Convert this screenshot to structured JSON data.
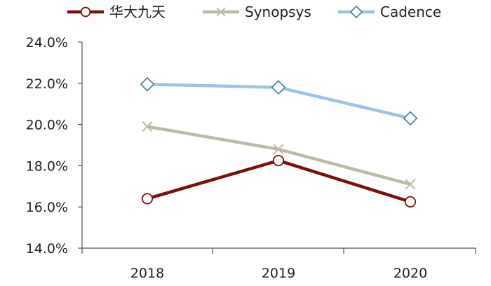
{
  "chart_data": {
    "type": "line",
    "categories": [
      "2018",
      "2019",
      "2020"
    ],
    "ylim": [
      14.0,
      24.0
    ],
    "yticks": [
      14.0,
      16.0,
      18.0,
      20.0,
      22.0,
      24.0
    ],
    "ytick_labels": [
      "14.0%",
      "16.0%",
      "18.0%",
      "20.0%",
      "22.0%",
      "24.0%"
    ],
    "grid": false,
    "legend_position": "top",
    "series": [
      {
        "name": "华大九天",
        "values": [
          16.4,
          18.25,
          16.25
        ],
        "color": "#7b0f0f",
        "marker": "circle"
      },
      {
        "name": "Synopsys",
        "values": [
          19.9,
          18.8,
          17.1
        ],
        "color": "#bdbaaa",
        "marker": "x"
      },
      {
        "name": "Cadence",
        "values": [
          21.95,
          21.8,
          20.3
        ],
        "color": "#9dc3e6",
        "marker": "diamond",
        "marker_edge_color": "#3f7f8c"
      }
    ]
  }
}
